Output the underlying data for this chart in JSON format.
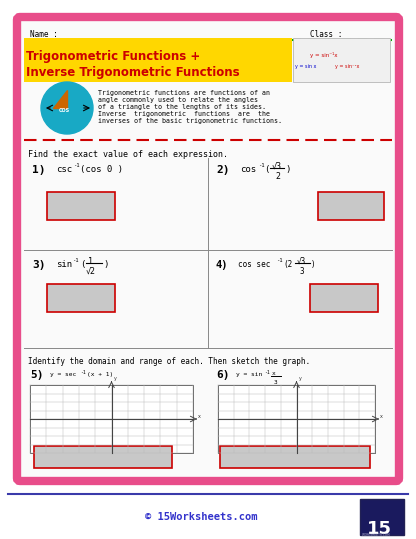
{
  "bg_color": "#ffffff",
  "outer_border_color": "#e84d8a",
  "page_bg": "#ffffff",
  "name_label": "Name :",
  "class_label": "Class :",
  "title_line1": "Trigonometric Functions +",
  "title_line2": "Inverse Trigonometric Functions",
  "title_bg": "#ffd700",
  "title_color": "#cc0000",
  "dashed_green": "#00aa00",
  "dashed_red": "#cc0000",
  "description": "Trigonometric functions are functions of an\nangle commonly used to relate the angles\nof a triangle to the lengths of its sides.\nInverse  trigonometric  functions  are  the\ninverses of the basic trigonometric functions.",
  "find_text": "Find the exact value of each expression.",
  "identify_text": "Identify the domain and range of each. Then sketch the graph.",
  "answer_box_color": "#c8c8c8",
  "answer_box_border": "#cc0000",
  "footer_text": "© 15Worksheets.com",
  "footer_color": "#3333cc",
  "grid_color": "#bbbbbb",
  "axis_color": "#333333",
  "card_facecolor": "#fafafa",
  "info_box_color": "#f0f0f0"
}
